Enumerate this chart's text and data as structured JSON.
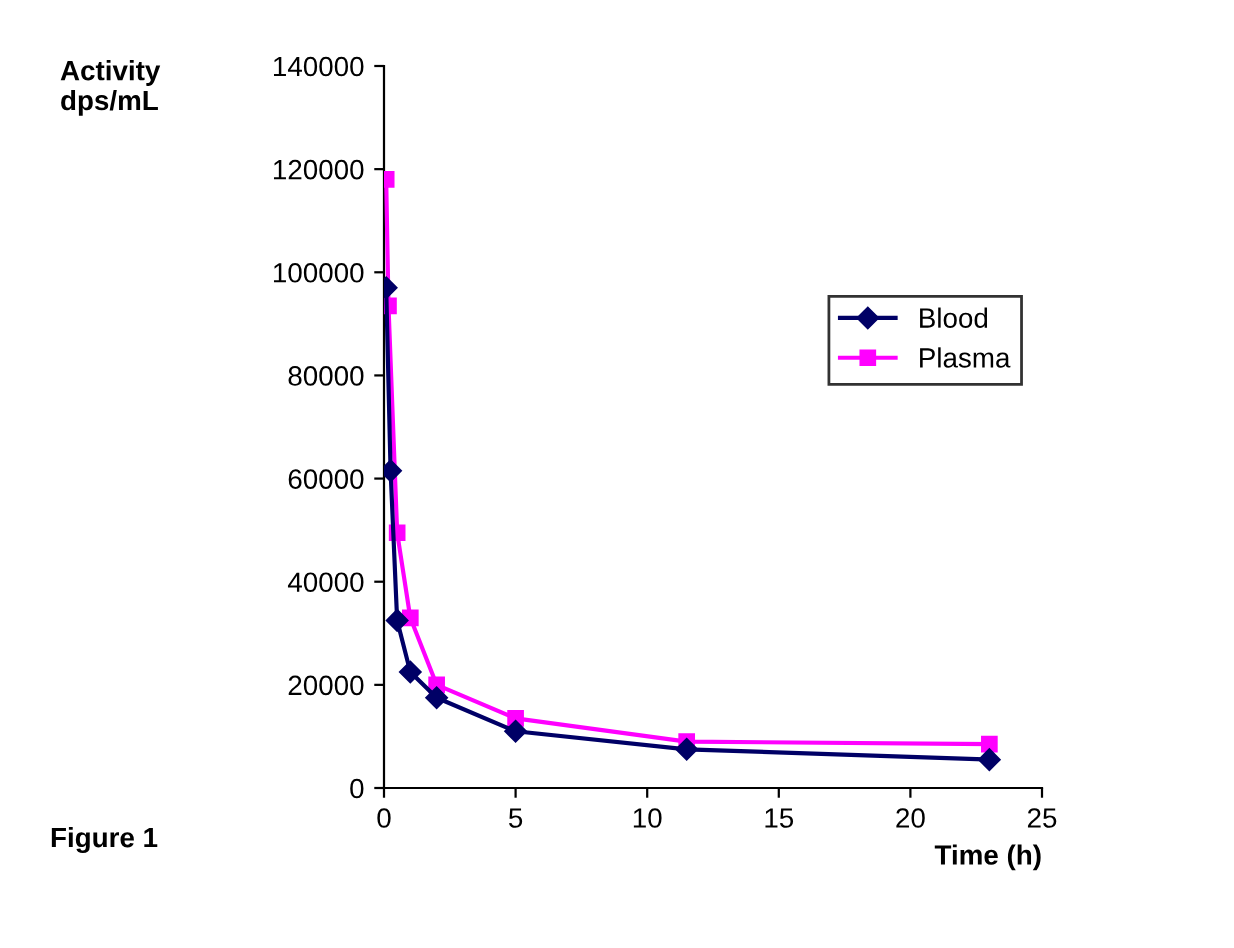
{
  "chart_data": {
    "type": "line",
    "xlabel": "Time (h)",
    "ylabel": "Activity\ndps/mL",
    "annotations": [
      "Figure 1"
    ],
    "xlim": [
      0,
      25
    ],
    "xticks": [
      0,
      5,
      10,
      15,
      20,
      25
    ],
    "ylim": [
      0,
      140000
    ],
    "yticks": [
      0,
      20000,
      40000,
      60000,
      80000,
      100000,
      120000,
      140000
    ],
    "grid": false,
    "legend": "right",
    "series": [
      {
        "name": "Blood",
        "color": "#000066",
        "marker": "diamond",
        "x": [
          0.083,
          0.25,
          0.5,
          1,
          2,
          5,
          11.5,
          23
        ],
        "values": [
          97000,
          61500,
          32500,
          22500,
          17500,
          11000,
          7500,
          5500
        ]
      },
      {
        "name": "Plasma",
        "color": "#ff00ff",
        "marker": "square",
        "x": [
          0.083,
          0.17,
          0.5,
          1,
          2,
          5,
          11.5,
          23
        ],
        "values": [
          118000,
          93500,
          49500,
          33000,
          20000,
          13500,
          9000,
          8500
        ]
      }
    ]
  }
}
